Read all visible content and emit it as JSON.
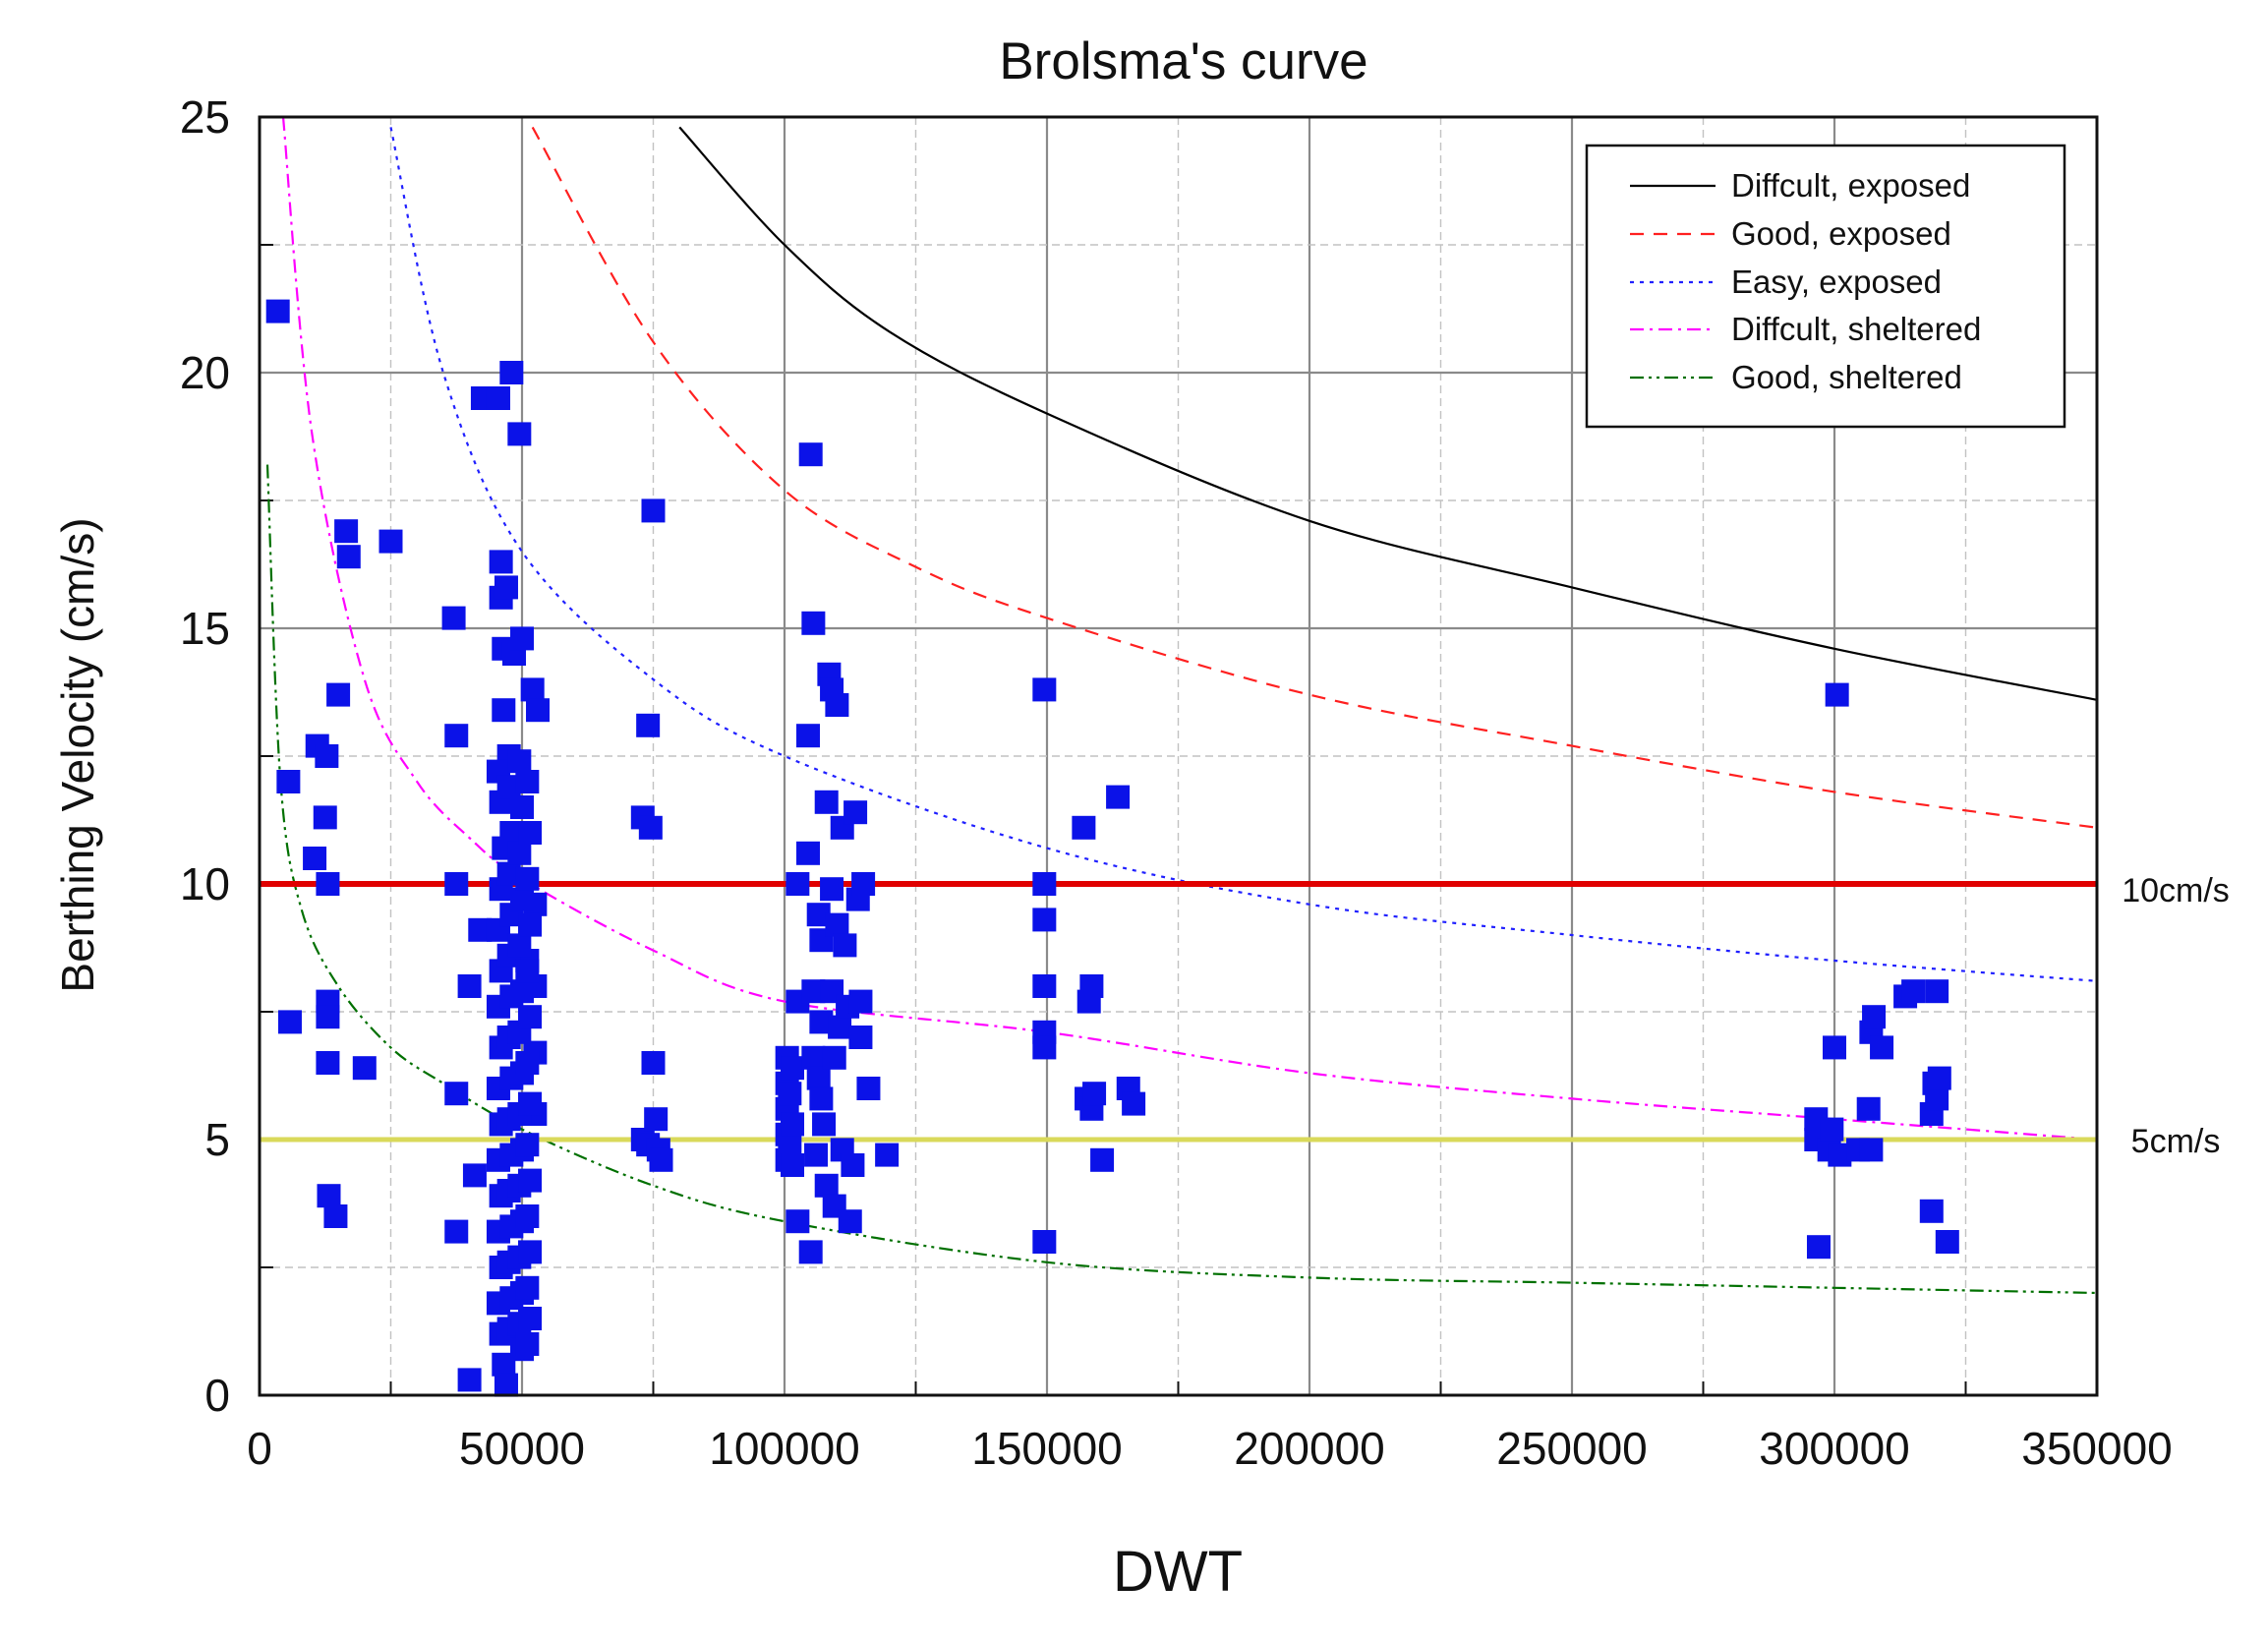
{
  "chart_data": {
    "type": "scatter",
    "title": "Brolsma's curve",
    "xlabel": "DWT",
    "ylabel": "Berthing Velocity (cm/s)",
    "xlim": [
      0,
      350000
    ],
    "ylim": [
      0,
      25
    ],
    "xticks": [
      0,
      50000,
      100000,
      150000,
      200000,
      250000,
      300000,
      350000
    ],
    "yticks": [
      0,
      5,
      10,
      15,
      20,
      25
    ],
    "grid": true,
    "legend_position": "top-right",
    "colors": {
      "points": "#0b12e8",
      "line_10": "#e00000",
      "line_5": "#d9d95a",
      "diffcult_exposed": "#000000",
      "good_exposed": "#ff2020",
      "easy_exposed": "#2020ff",
      "diffcult_sheltered": "#ff00ff",
      "good_sheltered": "#007000"
    },
    "series": [
      {
        "name": "Diffcult, exposed",
        "style": "solid",
        "color": "#000000",
        "x": [
          80000,
          100000,
          120000,
          150000,
          200000,
          250000,
          300000,
          350000
        ],
        "y": [
          24.8,
          22.5,
          20.8,
          19.2,
          17.1,
          15.8,
          14.6,
          13.6
        ]
      },
      {
        "name": "Good, exposed",
        "style": "dashed",
        "color": "#ff2020",
        "x": [
          52000,
          75000,
          100000,
          125000,
          150000,
          200000,
          250000,
          300000,
          350000
        ],
        "y": [
          24.8,
          20.6,
          17.7,
          16.2,
          15.2,
          13.7,
          12.7,
          11.8,
          11.1
        ]
      },
      {
        "name": "Easy, exposed",
        "style": "dotted",
        "color": "#2020ff",
        "x": [
          25000,
          35000,
          50000,
          75000,
          100000,
          150000,
          200000,
          250000,
          300000,
          350000
        ],
        "y": [
          24.8,
          20.0,
          16.5,
          14.0,
          12.5,
          10.7,
          9.6,
          9.0,
          8.5,
          8.1
        ]
      },
      {
        "name": "Diffcult, sheltered",
        "style": "dashdot",
        "color": "#ff00ff",
        "x": [
          4500,
          10000,
          20000,
          30000,
          40000,
          50000,
          75000,
          100000,
          150000,
          200000,
          250000,
          300000,
          350000
        ],
        "y": [
          25.0,
          18.8,
          14.0,
          12.0,
          10.9,
          10.1,
          8.7,
          7.7,
          7.1,
          6.3,
          5.8,
          5.4,
          5.0
        ]
      },
      {
        "name": "Good, sheltered",
        "style": "dashdotdot",
        "color": "#007000",
        "x": [
          1500,
          4000,
          8000,
          15000,
          25000,
          35000,
          50000,
          75000,
          100000,
          150000,
          200000,
          250000,
          300000,
          350000
        ],
        "y": [
          18.2,
          12.0,
          9.5,
          8.0,
          6.8,
          6.1,
          5.2,
          4.1,
          3.4,
          2.6,
          2.3,
          2.2,
          2.1,
          2.0
        ]
      }
    ],
    "reference_lines": [
      {
        "label": "10cm/s",
        "y": 10,
        "color": "#e00000"
      },
      {
        "label": "5cm/s",
        "y": 5,
        "color": "#d9d95a"
      }
    ],
    "points": [
      {
        "x": 3500,
        "y": 21.2
      },
      {
        "x": 5500,
        "y": 12.0
      },
      {
        "x": 5800,
        "y": 7.3
      },
      {
        "x": 10500,
        "y": 10.5
      },
      {
        "x": 11000,
        "y": 12.7
      },
      {
        "x": 12500,
        "y": 11.3
      },
      {
        "x": 12800,
        "y": 12.5
      },
      {
        "x": 13000,
        "y": 10.0
      },
      {
        "x": 13000,
        "y": 7.7
      },
      {
        "x": 13000,
        "y": 7.4
      },
      {
        "x": 13000,
        "y": 6.5
      },
      {
        "x": 13200,
        "y": 3.9
      },
      {
        "x": 14500,
        "y": 3.5
      },
      {
        "x": 15000,
        "y": 13.7
      },
      {
        "x": 16500,
        "y": 16.9
      },
      {
        "x": 17000,
        "y": 16.4
      },
      {
        "x": 20000,
        "y": 6.4
      },
      {
        "x": 25000,
        "y": 16.7
      },
      {
        "x": 37000,
        "y": 15.2
      },
      {
        "x": 37500,
        "y": 12.9
      },
      {
        "x": 37500,
        "y": 10.0
      },
      {
        "x": 37500,
        "y": 5.9
      },
      {
        "x": 37500,
        "y": 3.2
      },
      {
        "x": 40000,
        "y": 0.3
      },
      {
        "x": 40000,
        "y": 8.0
      },
      {
        "x": 41000,
        "y": 4.3
      },
      {
        "x": 42000,
        "y": 9.1
      },
      {
        "x": 42500,
        "y": 19.5
      },
      {
        "x": 45500,
        "y": 19.5
      },
      {
        "x": 46000,
        "y": 16.3
      },
      {
        "x": 46000,
        "y": 15.6
      },
      {
        "x": 46500,
        "y": 14.6
      },
      {
        "x": 46500,
        "y": 13.4
      },
      {
        "x": 46500,
        "y": 0.6
      },
      {
        "x": 47000,
        "y": 15.8
      },
      {
        "x": 47500,
        "y": 12.5
      },
      {
        "x": 48000,
        "y": 20.0
      },
      {
        "x": 48500,
        "y": 14.5
      },
      {
        "x": 49500,
        "y": 18.8
      },
      {
        "x": 50000,
        "y": 14.8
      },
      {
        "x": 51000,
        "y": 8.5
      },
      {
        "x": 52000,
        "y": 13.8
      },
      {
        "x": 52500,
        "y": 9.6
      },
      {
        "x": 52500,
        "y": 8.0
      },
      {
        "x": 52500,
        "y": 6.7
      },
      {
        "x": 52500,
        "y": 5.5
      },
      {
        "x": 53000,
        "y": 13.4
      },
      {
        "x": 45500,
        "y": 12.2
      },
      {
        "x": 46000,
        "y": 11.6
      },
      {
        "x": 46500,
        "y": 10.7
      },
      {
        "x": 46000,
        "y": 9.9
      },
      {
        "x": 45500,
        "y": 9.1
      },
      {
        "x": 46000,
        "y": 8.3
      },
      {
        "x": 45500,
        "y": 7.6
      },
      {
        "x": 46000,
        "y": 6.8
      },
      {
        "x": 45500,
        "y": 6.0
      },
      {
        "x": 46000,
        "y": 5.3
      },
      {
        "x": 45500,
        "y": 4.6
      },
      {
        "x": 46000,
        "y": 3.9
      },
      {
        "x": 45500,
        "y": 3.2
      },
      {
        "x": 46000,
        "y": 2.5
      },
      {
        "x": 45500,
        "y": 1.8
      },
      {
        "x": 46000,
        "y": 1.2
      },
      {
        "x": 47500,
        "y": 11.9
      },
      {
        "x": 48000,
        "y": 11.0
      },
      {
        "x": 47500,
        "y": 10.2
      },
      {
        "x": 48000,
        "y": 9.4
      },
      {
        "x": 47500,
        "y": 8.6
      },
      {
        "x": 48000,
        "y": 7.8
      },
      {
        "x": 47500,
        "y": 7.0
      },
      {
        "x": 48000,
        "y": 6.2
      },
      {
        "x": 47500,
        "y": 5.4
      },
      {
        "x": 48000,
        "y": 4.7
      },
      {
        "x": 47500,
        "y": 4.0
      },
      {
        "x": 48000,
        "y": 3.3
      },
      {
        "x": 47500,
        "y": 2.6
      },
      {
        "x": 48000,
        "y": 1.9
      },
      {
        "x": 47500,
        "y": 1.3
      },
      {
        "x": 49500,
        "y": 12.4
      },
      {
        "x": 50000,
        "y": 11.5
      },
      {
        "x": 49500,
        "y": 10.6
      },
      {
        "x": 50000,
        "y": 9.7
      },
      {
        "x": 49500,
        "y": 8.8
      },
      {
        "x": 50000,
        "y": 7.9
      },
      {
        "x": 49500,
        "y": 7.1
      },
      {
        "x": 50000,
        "y": 6.3
      },
      {
        "x": 49500,
        "y": 5.5
      },
      {
        "x": 50000,
        "y": 4.8
      },
      {
        "x": 49500,
        "y": 4.1
      },
      {
        "x": 50000,
        "y": 3.4
      },
      {
        "x": 49500,
        "y": 2.7
      },
      {
        "x": 50000,
        "y": 2.0
      },
      {
        "x": 49500,
        "y": 1.4
      },
      {
        "x": 50000,
        "y": 0.9
      },
      {
        "x": 51000,
        "y": 12.0
      },
      {
        "x": 51500,
        "y": 11.0
      },
      {
        "x": 51000,
        "y": 10.1
      },
      {
        "x": 51500,
        "y": 9.2
      },
      {
        "x": 51000,
        "y": 8.3
      },
      {
        "x": 51500,
        "y": 7.4
      },
      {
        "x": 51000,
        "y": 6.5
      },
      {
        "x": 51500,
        "y": 5.7
      },
      {
        "x": 51000,
        "y": 4.9
      },
      {
        "x": 51500,
        "y": 4.2
      },
      {
        "x": 51000,
        "y": 3.5
      },
      {
        "x": 51500,
        "y": 2.8
      },
      {
        "x": 51000,
        "y": 2.1
      },
      {
        "x": 51500,
        "y": 1.5
      },
      {
        "x": 51000,
        "y": 1.0
      },
      {
        "x": 47000,
        "y": 0.2
      },
      {
        "x": 73000,
        "y": 11.3
      },
      {
        "x": 73000,
        "y": 5.0
      },
      {
        "x": 74000,
        "y": 13.1
      },
      {
        "x": 74000,
        "y": 4.9
      },
      {
        "x": 74500,
        "y": 11.1
      },
      {
        "x": 75000,
        "y": 17.3
      },
      {
        "x": 75000,
        "y": 6.5
      },
      {
        "x": 75500,
        "y": 5.4
      },
      {
        "x": 76000,
        "y": 4.8
      },
      {
        "x": 76500,
        "y": 4.6
      },
      {
        "x": 100500,
        "y": 6.6
      },
      {
        "x": 100500,
        "y": 6.1
      },
      {
        "x": 100500,
        "y": 5.6
      },
      {
        "x": 100500,
        "y": 5.1
      },
      {
        "x": 100500,
        "y": 4.6
      },
      {
        "x": 101000,
        "y": 5.9
      },
      {
        "x": 101000,
        "y": 4.9
      },
      {
        "x": 101500,
        "y": 6.4
      },
      {
        "x": 101500,
        "y": 5.3
      },
      {
        "x": 101500,
        "y": 4.5
      },
      {
        "x": 102500,
        "y": 10.0
      },
      {
        "x": 102500,
        "y": 7.7
      },
      {
        "x": 102500,
        "y": 3.4
      },
      {
        "x": 104500,
        "y": 12.9
      },
      {
        "x": 104500,
        "y": 10.6
      },
      {
        "x": 105000,
        "y": 18.4
      },
      {
        "x": 105000,
        "y": 2.8
      },
      {
        "x": 105500,
        "y": 15.1
      },
      {
        "x": 105500,
        "y": 7.9
      },
      {
        "x": 105500,
        "y": 6.6
      },
      {
        "x": 106000,
        "y": 4.7
      },
      {
        "x": 106500,
        "y": 9.4
      },
      {
        "x": 106500,
        "y": 6.2
      },
      {
        "x": 107000,
        "y": 8.9
      },
      {
        "x": 107000,
        "y": 7.3
      },
      {
        "x": 107000,
        "y": 5.8
      },
      {
        "x": 107500,
        "y": 5.3
      },
      {
        "x": 108000,
        "y": 11.6
      },
      {
        "x": 108000,
        "y": 4.1
      },
      {
        "x": 108500,
        "y": 14.1
      },
      {
        "x": 109000,
        "y": 13.8
      },
      {
        "x": 109000,
        "y": 9.9
      },
      {
        "x": 109000,
        "y": 7.9
      },
      {
        "x": 109500,
        "y": 6.6
      },
      {
        "x": 109500,
        "y": 3.7
      },
      {
        "x": 110000,
        "y": 13.5
      },
      {
        "x": 110000,
        "y": 9.2
      },
      {
        "x": 110500,
        "y": 7.2
      },
      {
        "x": 111000,
        "y": 11.1
      },
      {
        "x": 111000,
        "y": 4.8
      },
      {
        "x": 111500,
        "y": 8.8
      },
      {
        "x": 112000,
        "y": 7.6
      },
      {
        "x": 112500,
        "y": 3.4
      },
      {
        "x": 113000,
        "y": 4.5
      },
      {
        "x": 113500,
        "y": 11.4
      },
      {
        "x": 114000,
        "y": 9.7
      },
      {
        "x": 114500,
        "y": 7.7
      },
      {
        "x": 114500,
        "y": 7.0
      },
      {
        "x": 115000,
        "y": 10.0
      },
      {
        "x": 116000,
        "y": 6.0
      },
      {
        "x": 119500,
        "y": 4.7
      },
      {
        "x": 149500,
        "y": 13.8
      },
      {
        "x": 149500,
        "y": 10.0
      },
      {
        "x": 149500,
        "y": 9.3
      },
      {
        "x": 149500,
        "y": 8.0
      },
      {
        "x": 149500,
        "y": 7.1
      },
      {
        "x": 149500,
        "y": 6.8
      },
      {
        "x": 149500,
        "y": 3.0
      },
      {
        "x": 157000,
        "y": 11.1
      },
      {
        "x": 157500,
        "y": 5.8
      },
      {
        "x": 158000,
        "y": 7.7
      },
      {
        "x": 158500,
        "y": 8.0
      },
      {
        "x": 158500,
        "y": 5.6
      },
      {
        "x": 159000,
        "y": 5.9
      },
      {
        "x": 160500,
        "y": 4.6
      },
      {
        "x": 163500,
        "y": 11.7
      },
      {
        "x": 165500,
        "y": 6.0
      },
      {
        "x": 166500,
        "y": 5.7
      },
      {
        "x": 296500,
        "y": 5.4
      },
      {
        "x": 296500,
        "y": 5.0
      },
      {
        "x": 297000,
        "y": 2.9
      },
      {
        "x": 299000,
        "y": 4.8
      },
      {
        "x": 299500,
        "y": 5.2
      },
      {
        "x": 300000,
        "y": 6.8
      },
      {
        "x": 300500,
        "y": 13.7
      },
      {
        "x": 301000,
        "y": 4.7
      },
      {
        "x": 304500,
        "y": 4.8
      },
      {
        "x": 306500,
        "y": 5.6
      },
      {
        "x": 307000,
        "y": 7.1
      },
      {
        "x": 307000,
        "y": 4.8
      },
      {
        "x": 307500,
        "y": 7.4
      },
      {
        "x": 309000,
        "y": 6.8
      },
      {
        "x": 313500,
        "y": 7.8
      },
      {
        "x": 315000,
        "y": 7.9
      },
      {
        "x": 318500,
        "y": 3.6
      },
      {
        "x": 318500,
        "y": 5.5
      },
      {
        "x": 319000,
        "y": 6.1
      },
      {
        "x": 319500,
        "y": 7.9
      },
      {
        "x": 319500,
        "y": 5.8
      },
      {
        "x": 320000,
        "y": 6.2
      },
      {
        "x": 321500,
        "y": 3.0
      }
    ]
  }
}
